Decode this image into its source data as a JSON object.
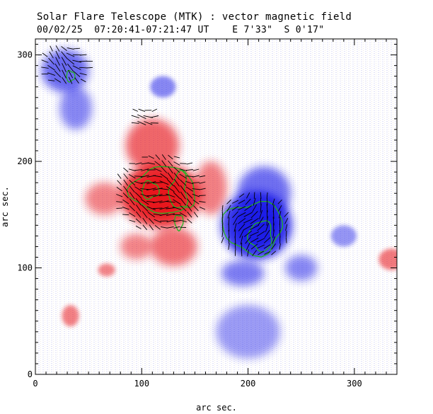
{
  "title": "Solar Flare Telescope (MTK) : vector magnetic field",
  "subtitle": "00/02/25  07:20:41-07:21:47 UT    E 7'33\"  S 0'17\"",
  "chart_data": {
    "type": "heatmap",
    "xlabel": "arc sec.",
    "ylabel": "arc sec.",
    "xlim": [
      0,
      340
    ],
    "ylim": [
      0,
      315
    ],
    "x_ticks": [
      0,
      100,
      200,
      300
    ],
    "y_ticks": [
      0,
      100,
      200,
      300
    ],
    "colors": {
      "positive": "#e8141a",
      "negative": "#1a1ae8",
      "contour": "#22b422",
      "vector": "#000000"
    },
    "regions": [
      {
        "polarity": "positive",
        "cx": 118,
        "cy": 168,
        "rx": 38,
        "ry": 30,
        "strength": 1.0
      },
      {
        "polarity": "positive",
        "cx": 110,
        "cy": 215,
        "rx": 25,
        "ry": 25,
        "strength": 0.55
      },
      {
        "polarity": "positive",
        "cx": 130,
        "cy": 120,
        "rx": 22,
        "ry": 18,
        "strength": 0.45
      },
      {
        "polarity": "positive",
        "cx": 165,
        "cy": 175,
        "rx": 15,
        "ry": 25,
        "strength": 0.35
      },
      {
        "polarity": "positive",
        "cx": 95,
        "cy": 120,
        "rx": 15,
        "ry": 12,
        "strength": 0.3
      },
      {
        "polarity": "positive",
        "cx": 65,
        "cy": 165,
        "rx": 18,
        "ry": 15,
        "strength": 0.3
      },
      {
        "polarity": "negative",
        "cx": 208,
        "cy": 140,
        "rx": 33,
        "ry": 32,
        "strength": 1.0
      },
      {
        "polarity": "negative",
        "cx": 215,
        "cy": 170,
        "rx": 25,
        "ry": 25,
        "strength": 0.5
      },
      {
        "polarity": "negative",
        "cx": 195,
        "cy": 95,
        "rx": 20,
        "ry": 12,
        "strength": 0.4
      },
      {
        "polarity": "negative",
        "cx": 28,
        "cy": 285,
        "rx": 22,
        "ry": 20,
        "strength": 0.55
      },
      {
        "polarity": "negative",
        "cx": 38,
        "cy": 250,
        "rx": 15,
        "ry": 20,
        "strength": 0.3
      },
      {
        "polarity": "negative",
        "cx": 250,
        "cy": 100,
        "rx": 15,
        "ry": 12,
        "strength": 0.3
      },
      {
        "polarity": "negative",
        "cx": 200,
        "cy": 40,
        "rx": 30,
        "ry": 25,
        "strength": 0.15
      },
      {
        "polarity": "negative",
        "cx": 120,
        "cy": 270,
        "rx": 12,
        "ry": 10,
        "strength": 0.3
      },
      {
        "polarity": "negative",
        "cx": 290,
        "cy": 130,
        "rx": 12,
        "ry": 10,
        "strength": 0.2
      },
      {
        "polarity": "positive",
        "cx": 335,
        "cy": 108,
        "rx": 12,
        "ry": 10,
        "strength": 0.4
      },
      {
        "polarity": "positive",
        "cx": 33,
        "cy": 55,
        "rx": 8,
        "ry": 10,
        "strength": 0.35
      },
      {
        "polarity": "positive",
        "cx": 67,
        "cy": 98,
        "rx": 8,
        "ry": 6,
        "strength": 0.3
      }
    ],
    "contours": [
      {
        "cx": 118,
        "cy": 173,
        "rx": 27,
        "ry": 22
      },
      {
        "cx": 108,
        "cy": 173,
        "rx": 8,
        "ry": 8
      },
      {
        "cx": 138,
        "cy": 172,
        "rx": 12,
        "ry": 17
      },
      {
        "cx": 205,
        "cy": 138,
        "rx": 28,
        "ry": 24
      },
      {
        "cx": 212,
        "cy": 130,
        "rx": 11,
        "ry": 14
      },
      {
        "cx": 33,
        "cy": 280,
        "rx": 4,
        "ry": 5
      },
      {
        "cx": 135,
        "cy": 143,
        "rx": 4,
        "ry": 7
      }
    ],
    "vector_fields": [
      {
        "cx": 118,
        "cy": 170,
        "rx": 45,
        "ry": 38,
        "angle_deg": -20
      },
      {
        "cx": 205,
        "cy": 140,
        "rx": 35,
        "ry": 32,
        "angle_deg": 60
      },
      {
        "cx": 28,
        "cy": 290,
        "rx": 25,
        "ry": 20,
        "angle_deg": -30
      },
      {
        "cx": 103,
        "cy": 240,
        "rx": 15,
        "ry": 10,
        "angle_deg": 10
      }
    ]
  }
}
